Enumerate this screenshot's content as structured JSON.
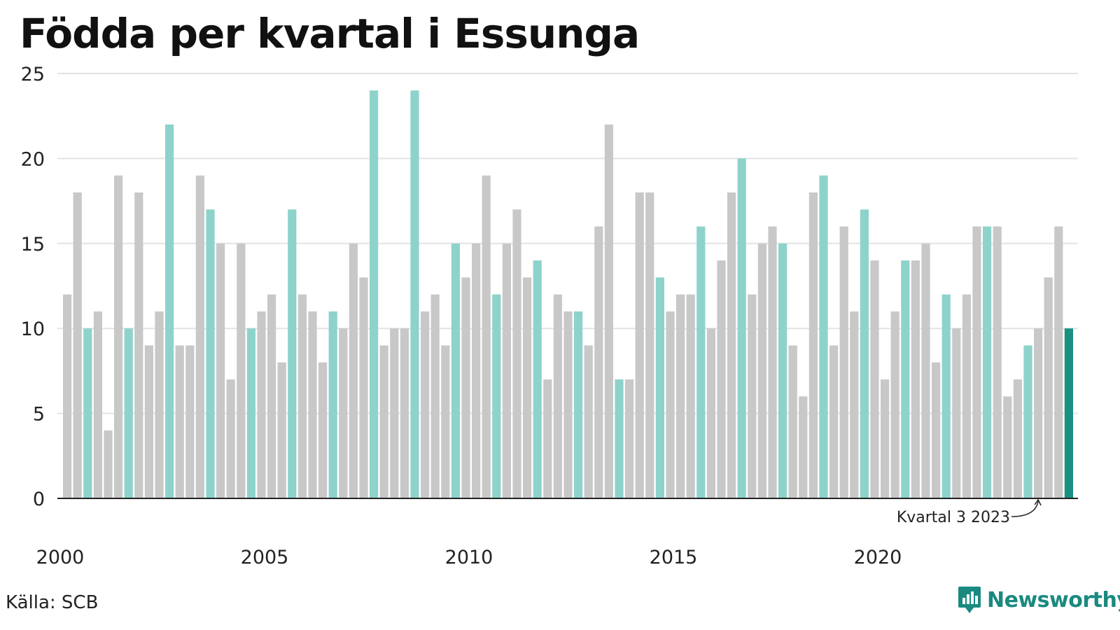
{
  "header": {
    "title": "Födda per kvartal i Essunga"
  },
  "footer": {
    "source": "Källa: SCB",
    "brand": "Newsworthy"
  },
  "colors": {
    "gray": "#c8c8c8",
    "teal_light": "#8dd3cb",
    "teal_dark": "#1a9082",
    "gridline": "#e3e3e3",
    "axis": "#222222"
  },
  "chart_data": {
    "type": "bar",
    "title": "Födda per kvartal i Essunga",
    "xlabel": "",
    "ylabel": "",
    "ylim": [
      0,
      25
    ],
    "yticks": [
      0,
      5,
      10,
      15,
      20,
      25
    ],
    "xticks": [
      "2000",
      "2005",
      "2010",
      "2015",
      "2020"
    ],
    "grid": true,
    "annotation": {
      "text": "Kvartal 3 2023",
      "target_index": 95
    },
    "highlight_quarter": 3,
    "start_year": 2000,
    "values": [
      12,
      18,
      10,
      11,
      4,
      19,
      10,
      18,
      9,
      11,
      22,
      9,
      9,
      19,
      17,
      15,
      7,
      15,
      10,
      11,
      12,
      8,
      17,
      12,
      11,
      8,
      11,
      10,
      15,
      13,
      24,
      9,
      10,
      10,
      24,
      11,
      12,
      9,
      15,
      13,
      15,
      19,
      12,
      15,
      17,
      13,
      14,
      7,
      12,
      11,
      11,
      9,
      16,
      22,
      7,
      7,
      18,
      18,
      13,
      11,
      12,
      12,
      16,
      10,
      14,
      18,
      20,
      12,
      15,
      16,
      15,
      9,
      6,
      18,
      19,
      9,
      16,
      11,
      17,
      14,
      7,
      11,
      14,
      14,
      15,
      8,
      12,
      10,
      12,
      16,
      16,
      16,
      6,
      7,
      9,
      10,
      13,
      16,
      10
    ]
  }
}
